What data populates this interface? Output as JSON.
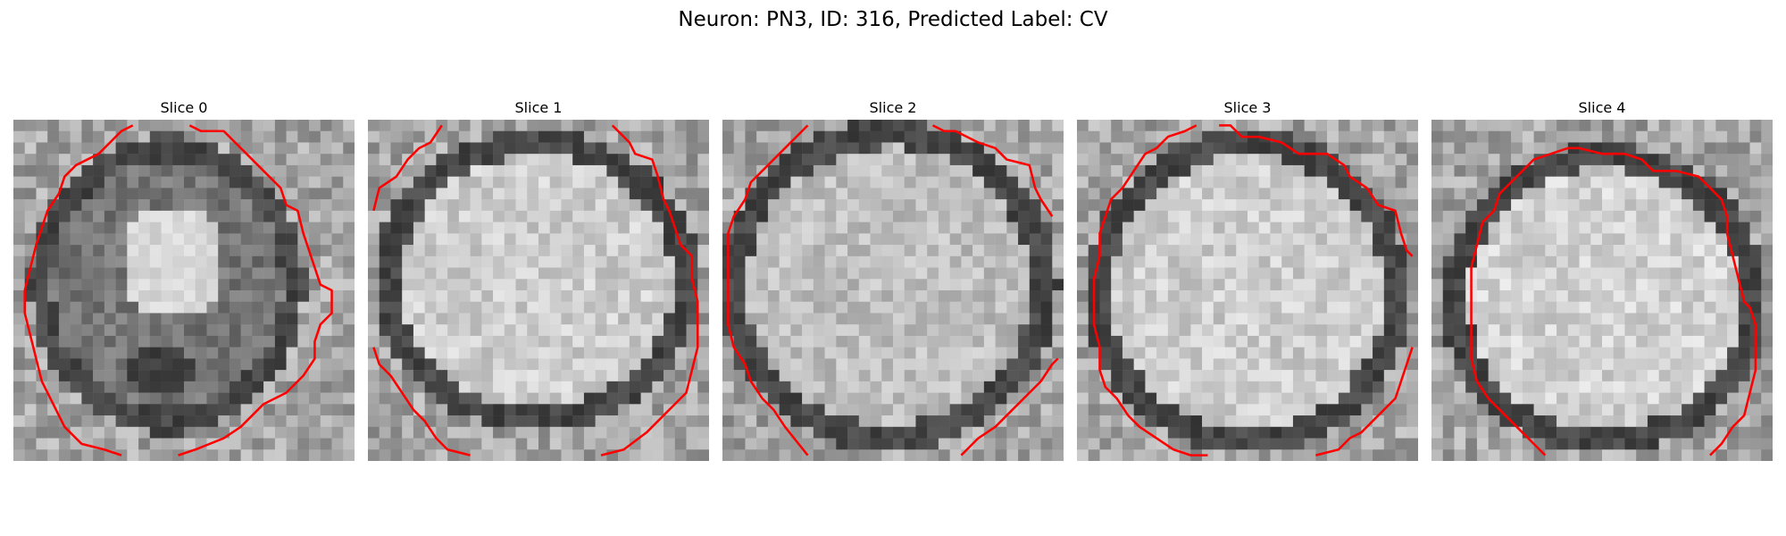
{
  "figure": {
    "title": "Neuron: PN3, ID: 316, Predicted Label: CV"
  },
  "panels": [
    {
      "title": "Slice 0"
    },
    {
      "title": "Slice 1"
    },
    {
      "title": "Slice 2"
    },
    {
      "title": "Slice 3"
    },
    {
      "title": "Slice 4"
    }
  ],
  "colors": {
    "contour": "#ff0000",
    "background": "#ffffff"
  }
}
